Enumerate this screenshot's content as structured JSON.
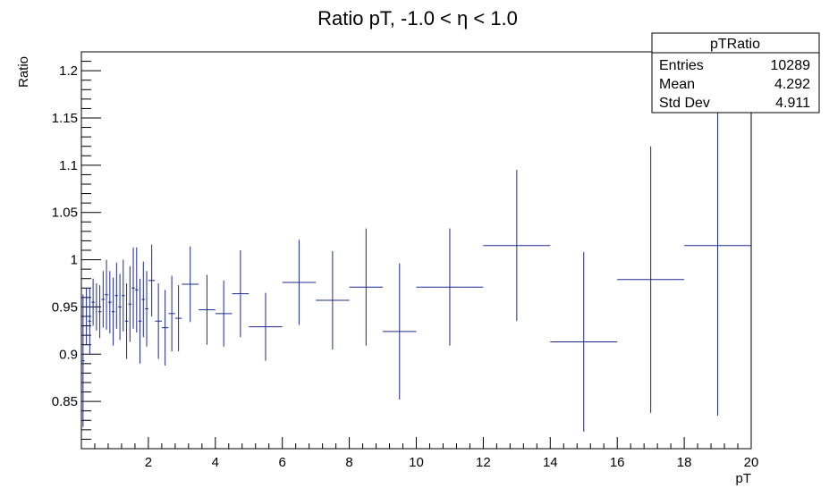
{
  "chart_data": {
    "type": "scatter",
    "title": "Ratio pT, -1.0 < η < 1.0",
    "xlabel": "pT",
    "ylabel": "Ratio",
    "xlim": [
      0,
      20
    ],
    "ylim": [
      0.8,
      1.22
    ],
    "grid": false,
    "x_ticks": [
      2,
      4,
      6,
      8,
      10,
      12,
      14,
      16,
      18,
      20
    ],
    "y_ticks": [
      0.85,
      0.9,
      0.95,
      1,
      1.05,
      1.1,
      1.15,
      1.2
    ],
    "x_tick_labels": [
      "2",
      "4",
      "6",
      "8",
      "10",
      "12",
      "14",
      "16",
      "18",
      "20"
    ],
    "y_tick_labels": [
      "0.85",
      "0.9",
      "0.95",
      "1",
      "1.05",
      "1.1",
      "1.15",
      "1.2"
    ],
    "series_color": "#1c2a8c",
    "points": [
      {
        "x": 0.05,
        "xerr": 0.05,
        "y": 0.893,
        "yerr": 0.07
      },
      {
        "x": 0.15,
        "xerr": 0.05,
        "y": 0.94,
        "yerr": 0.03
      },
      {
        "x": 0.25,
        "xerr": 0.05,
        "y": 0.935,
        "yerr": 0.035
      },
      {
        "x": 0.35,
        "xerr": 0.05,
        "y": 0.955,
        "yerr": 0.025
      },
      {
        "x": 0.45,
        "xerr": 0.05,
        "y": 0.95,
        "yerr": 0.025
      },
      {
        "x": 0.55,
        "xerr": 0.05,
        "y": 0.945,
        "yerr": 0.028
      },
      {
        "x": 0.65,
        "xerr": 0.05,
        "y": 0.958,
        "yerr": 0.03
      },
      {
        "x": 0.75,
        "xerr": 0.05,
        "y": 0.963,
        "yerr": 0.037
      },
      {
        "x": 0.85,
        "xerr": 0.05,
        "y": 0.955,
        "yerr": 0.033
      },
      {
        "x": 0.95,
        "xerr": 0.05,
        "y": 0.945,
        "yerr": 0.036
      },
      {
        "x": 1.05,
        "xerr": 0.05,
        "y": 0.962,
        "yerr": 0.035
      },
      {
        "x": 1.15,
        "xerr": 0.05,
        "y": 0.95,
        "yerr": 0.035
      },
      {
        "x": 1.25,
        "xerr": 0.05,
        "y": 0.962,
        "yerr": 0.038
      },
      {
        "x": 1.35,
        "xerr": 0.05,
        "y": 0.935,
        "yerr": 0.04
      },
      {
        "x": 1.45,
        "xerr": 0.05,
        "y": 0.953,
        "yerr": 0.04
      },
      {
        "x": 1.55,
        "xerr": 0.05,
        "y": 0.97,
        "yerr": 0.043
      },
      {
        "x": 1.65,
        "xerr": 0.05,
        "y": 0.968,
        "yerr": 0.045
      },
      {
        "x": 1.75,
        "xerr": 0.05,
        "y": 0.935,
        "yerr": 0.045
      },
      {
        "x": 1.85,
        "xerr": 0.05,
        "y": 0.958,
        "yerr": 0.04
      },
      {
        "x": 1.95,
        "xerr": 0.05,
        "y": 0.948,
        "yerr": 0.04
      },
      {
        "x": 2.1,
        "xerr": 0.1,
        "y": 0.978,
        "yerr": 0.038
      },
      {
        "x": 2.3,
        "xerr": 0.1,
        "y": 0.935,
        "yerr": 0.04
      },
      {
        "x": 2.5,
        "xerr": 0.1,
        "y": 0.928,
        "yerr": 0.04
      },
      {
        "x": 2.7,
        "xerr": 0.1,
        "y": 0.943,
        "yerr": 0.04
      },
      {
        "x": 2.9,
        "xerr": 0.1,
        "y": 0.938,
        "yerr": 0.035
      },
      {
        "x": 3.25,
        "xerr": 0.25,
        "y": 0.974,
        "yerr": 0.04
      },
      {
        "x": 3.75,
        "xerr": 0.25,
        "y": 0.947,
        "yerr": 0.037
      },
      {
        "x": 4.25,
        "xerr": 0.25,
        "y": 0.943,
        "yerr": 0.035
      },
      {
        "x": 4.75,
        "xerr": 0.25,
        "y": 0.964,
        "yerr": 0.046
      },
      {
        "x": 5.5,
        "xerr": 0.5,
        "y": 0.929,
        "yerr": 0.036
      },
      {
        "x": 6.5,
        "xerr": 0.5,
        "y": 0.976,
        "yerr": 0.045
      },
      {
        "x": 7.5,
        "xerr": 0.5,
        "y": 0.957,
        "yerr": 0.052
      },
      {
        "x": 8.5,
        "xerr": 0.5,
        "y": 0.971,
        "yerr": 0.062
      },
      {
        "x": 9.5,
        "xerr": 0.5,
        "y": 0.924,
        "yerr": 0.072
      },
      {
        "x": 11,
        "xerr": 1,
        "y": 0.971,
        "yerr": 0.062
      },
      {
        "x": 13,
        "xerr": 1,
        "y": 1.015,
        "yerr": 0.08
      },
      {
        "x": 15,
        "xerr": 1,
        "y": 0.913,
        "yerr": 0.095
      },
      {
        "x": 17,
        "xerr": 1,
        "y": 0.979,
        "yerr": 0.141
      },
      {
        "x": 19,
        "xerr": 1,
        "y": 1.015,
        "yerr": 0.18
      }
    ]
  },
  "stats_box": {
    "name": "pTRatio",
    "entries_label": "Entries",
    "entries_value": "10289",
    "mean_label": "Mean",
    "mean_value": "4.292",
    "stddev_label": "Std Dev",
    "stddev_value": "4.911"
  }
}
